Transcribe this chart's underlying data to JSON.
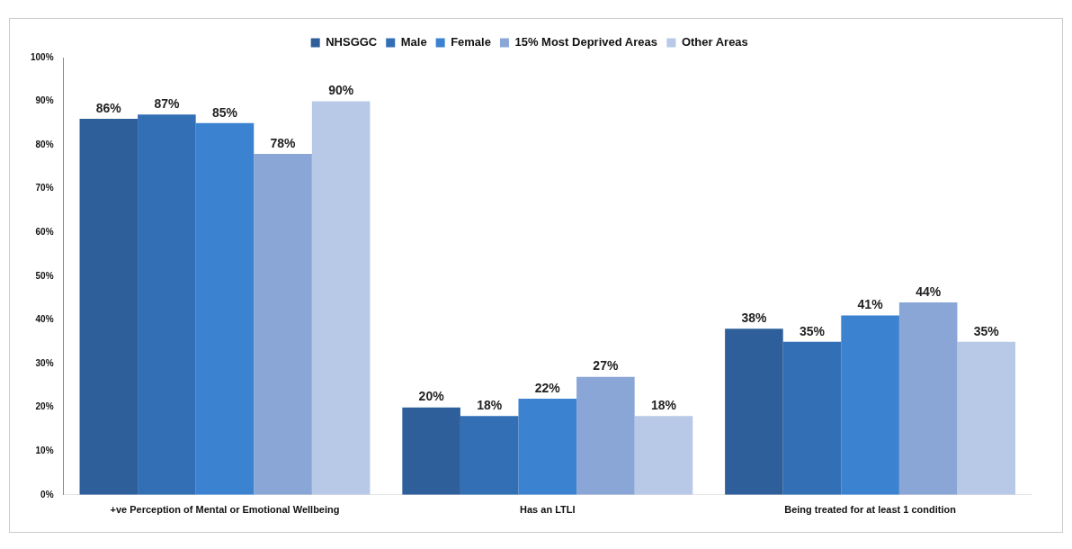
{
  "chart_data": {
    "type": "bar",
    "categories": [
      "+ve Perception of Mental or Emotional Wellbeing",
      "Has an LTLI",
      "Being treated for at least 1 condition"
    ],
    "series": [
      {
        "name": "NHSGGC",
        "color": "#2e5f9a",
        "values": [
          86,
          20,
          38
        ],
        "value_labels": [
          "86%",
          "20%",
          "38%"
        ]
      },
      {
        "name": "Male",
        "color": "#336fb5",
        "values": [
          87,
          18,
          35
        ],
        "value_labels": [
          "87%",
          "18%",
          "35%"
        ]
      },
      {
        "name": "Female",
        "color": "#3b82d0",
        "values": [
          85,
          22,
          41
        ],
        "value_labels": [
          "85%",
          "22%",
          "41%"
        ]
      },
      {
        "name": "15% Most Deprived Areas",
        "color": "#8aa6d6",
        "values": [
          78,
          27,
          44
        ],
        "value_labels": [
          "78%",
          "27%",
          "44%"
        ]
      },
      {
        "name": "Other Areas",
        "color": "#b8c9e8",
        "values": [
          90,
          18,
          35
        ],
        "value_labels": [
          "90%",
          "18%",
          "35%"
        ]
      }
    ],
    "ylim": [
      0,
      100
    ],
    "yticks": [
      {
        "value": 0,
        "label": "0%"
      },
      {
        "value": 10,
        "label": "10%"
      },
      {
        "value": 20,
        "label": "20%"
      },
      {
        "value": 30,
        "label": "30%"
      },
      {
        "value": 40,
        "label": "40%"
      },
      {
        "value": 50,
        "label": "50%"
      },
      {
        "value": 60,
        "label": "60%"
      },
      {
        "value": 70,
        "label": "70%"
      },
      {
        "value": 80,
        "label": "80%"
      },
      {
        "value": 90,
        "label": "90%"
      },
      {
        "value": 100,
        "label": "100%"
      }
    ],
    "grid": false,
    "legend": "top"
  }
}
